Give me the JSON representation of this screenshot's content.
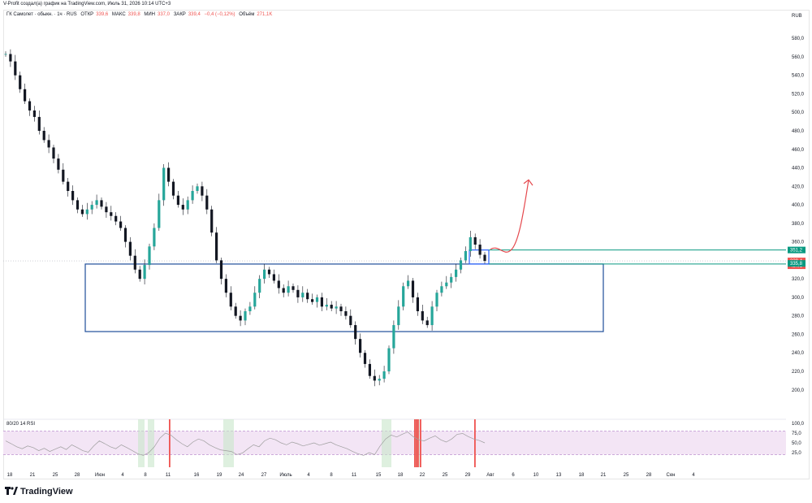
{
  "header": {
    "author_line": "V-Profit создал(а) график на TradingView.com, Июль 31, 2026 10:14 UTC+3"
  },
  "legend": {
    "symbol": "ГК Самолет · обыкн. · 1ч · RUS",
    "open_label": "ОТКР",
    "open_value": "339,6",
    "high_label": "МАКС",
    "high_value": "339,8",
    "low_label": "МИН",
    "low_value": "337,0",
    "close_label": "ЗАКР",
    "close_value": "339,4",
    "change": "−0,4 (−0,12%)",
    "volume_label": "Объём",
    "volume_value": "271,1K"
  },
  "currency": "RUB",
  "footer": {
    "brand": "TradingView"
  },
  "colors": {
    "up": "#26a69a",
    "down": "#ef5350",
    "candle_body": "#131722",
    "box": "#2962ff",
    "box_dark": "#1f4e9a",
    "green_line": "#089981",
    "arrow": "#e5484d",
    "rsi_fill": "#f3e5f5",
    "rsi_line": "#c9c9c9"
  },
  "chart_data": [
    {
      "type": "line",
      "title": "ГК Самолет · обыкн. · 1ч · RUS",
      "ylabel": "RUB",
      "y_scale": "linear",
      "ylim": [
        193,
        590
      ],
      "y_ticks": [
        "580,0",
        "560,0",
        "540,0",
        "520,0",
        "500,0",
        "480,0",
        "460,0",
        "440,0",
        "420,0",
        "400,0",
        "380,0",
        "360,0",
        "340,0",
        "320,0",
        "300,0",
        "280,0",
        "260,0",
        "240,0",
        "220,0",
        "200,0"
      ],
      "x_ticks": [
        "18",
        "21",
        "25",
        "28",
        "Июн",
        "4",
        "8",
        "11",
        "16",
        "19",
        "24",
        "27",
        "Июль",
        "4",
        "8",
        "11",
        "15",
        "18",
        "22",
        "25",
        "29",
        "Авг",
        "6",
        "10",
        "13",
        "18",
        "21",
        "25",
        "28",
        "Сен",
        "4"
      ],
      "series": [
        {
          "values": [
            563,
            555,
            540,
            525,
            512,
            502,
            495,
            480,
            470,
            462,
            450,
            438,
            425,
            415,
            405,
            395,
            390,
            395,
            400,
            405,
            398,
            392,
            388,
            382,
            375,
            360,
            345,
            330,
            320,
            335,
            355,
            375,
            405,
            440,
            425,
            410,
            400,
            395,
            405,
            415,
            420,
            410,
            395,
            370,
            340,
            320,
            305,
            290,
            280,
            275,
            285,
            290,
            305,
            320,
            330,
            325,
            318,
            310,
            305,
            312,
            308,
            300,
            305,
            298,
            295,
            300,
            290,
            292,
            288,
            290,
            285,
            280,
            270,
            255,
            240,
            228,
            215,
            210,
            212,
            220,
            245,
            270,
            290,
            312,
            318,
            300,
            285,
            275,
            270,
            290,
            305,
            312,
            316,
            322,
            330,
            340,
            350,
            365,
            357,
            346,
            339.4
          ]
        }
      ],
      "price_labels": [
        {
          "value": 351.2,
          "text": "351,2",
          "color": "#089981"
        },
        {
          "value": 339.4,
          "text": "339,4",
          "color": "#ef5350"
        },
        {
          "value": 339.4,
          "text": "45:01",
          "color": "#ef5350"
        },
        {
          "value": 335.8,
          "text": "335,8",
          "color": "#089981"
        }
      ],
      "annotations": [
        {
          "kind": "zone",
          "top": 336,
          "bottom": 263
        },
        {
          "kind": "zone",
          "top": 351.2,
          "bottom": 336
        },
        {
          "kind": "level",
          "value": 351.2
        },
        {
          "kind": "level",
          "value": 336
        },
        {
          "kind": "projection",
          "from": 352,
          "to": 427
        }
      ]
    },
    {
      "type": "line",
      "title": "80/20 14 RSI",
      "ylim": [
        0,
        100
      ],
      "y_ticks": [
        "100,0",
        "75,0",
        "50,0",
        "25,0"
      ],
      "bands": {
        "upper": 80,
        "lower": 20
      },
      "series": [
        {
          "values": [
            55,
            48,
            40,
            35,
            42,
            38,
            30,
            36,
            28,
            34,
            40,
            33,
            45,
            38,
            30,
            26,
            42,
            55,
            48,
            40,
            35,
            45,
            38,
            30,
            22,
            18,
            25,
            40,
            62,
            75,
            70,
            58,
            48,
            40,
            52,
            60,
            55,
            45,
            38,
            32,
            30,
            28,
            20,
            24,
            35,
            45,
            40,
            55,
            62,
            58,
            50,
            45,
            52,
            48,
            42,
            46,
            50,
            44,
            48,
            52,
            45,
            40,
            35,
            28,
            22,
            18,
            25,
            20,
            42,
            60,
            70,
            65,
            72,
            78,
            66,
            58,
            55,
            62,
            68,
            58,
            52,
            60,
            72,
            74,
            66,
            60,
            56,
            50
          ]
        }
      ]
    }
  ]
}
